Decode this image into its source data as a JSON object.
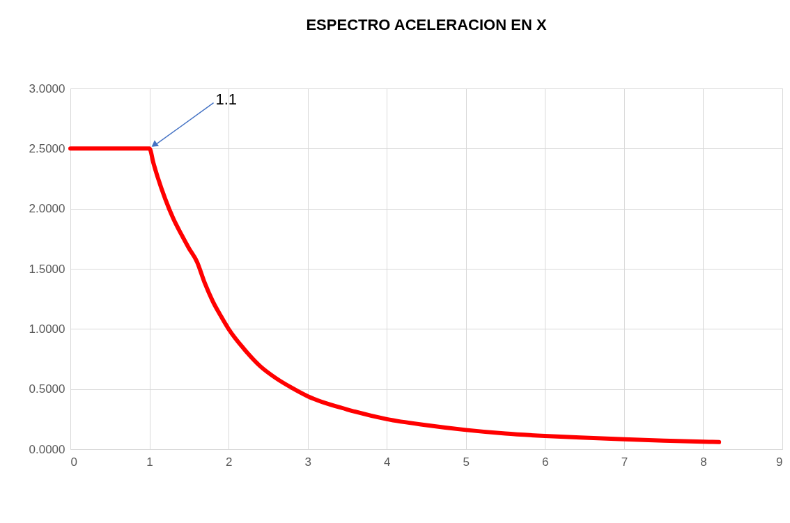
{
  "chart_data": {
    "type": "line",
    "title": "ESPECTRO ACELERACION  EN X",
    "x": [
      0,
      0.5,
      0.9,
      0.95,
      1.0,
      1.05,
      1.1,
      1.2,
      1.3,
      1.4,
      1.5,
      1.6,
      1.7,
      1.8,
      1.9,
      2.0,
      2.2,
      2.4,
      2.6,
      2.8,
      3.0,
      3.5,
      4.0,
      4.5,
      5.0,
      5.5,
      6.0,
      6.5,
      7.0,
      7.5,
      8.0,
      8.2
    ],
    "series": [
      {
        "color": "#ff0000",
        "values": [
          2.5,
          2.5,
          2.5,
          2.5,
          2.5,
          2.38,
          2.27,
          2.08,
          1.92,
          1.79,
          1.67,
          1.56,
          1.38,
          1.23,
          1.11,
          1.0,
          0.83,
          0.69,
          0.59,
          0.51,
          0.44,
          0.33,
          0.25,
          0.2,
          0.16,
          0.13,
          0.11,
          0.095,
          0.082,
          0.071,
          0.062,
          0.059
        ]
      }
    ],
    "xlim": [
      0,
      9
    ],
    "xticks": [
      0,
      1,
      2,
      3,
      4,
      5,
      6,
      7,
      8,
      9
    ],
    "ylim": [
      0,
      3
    ],
    "yticks": [
      {
        "value": 0,
        "label": "0.0000"
      },
      {
        "value": 0.5,
        "label": "0.5000"
      },
      {
        "value": 1,
        "label": "1.0000"
      },
      {
        "value": 1.5,
        "label": "1.5000"
      },
      {
        "value": 2,
        "label": "2.0000"
      },
      {
        "value": 2.5,
        "label": "2.5000"
      },
      {
        "value": 3,
        "label": "3.0000"
      }
    ],
    "annotations": [
      {
        "text": "1.1",
        "x": 1.0,
        "y": 2.5
      }
    ],
    "grid": true,
    "marker": "none",
    "line_style": "solid"
  }
}
